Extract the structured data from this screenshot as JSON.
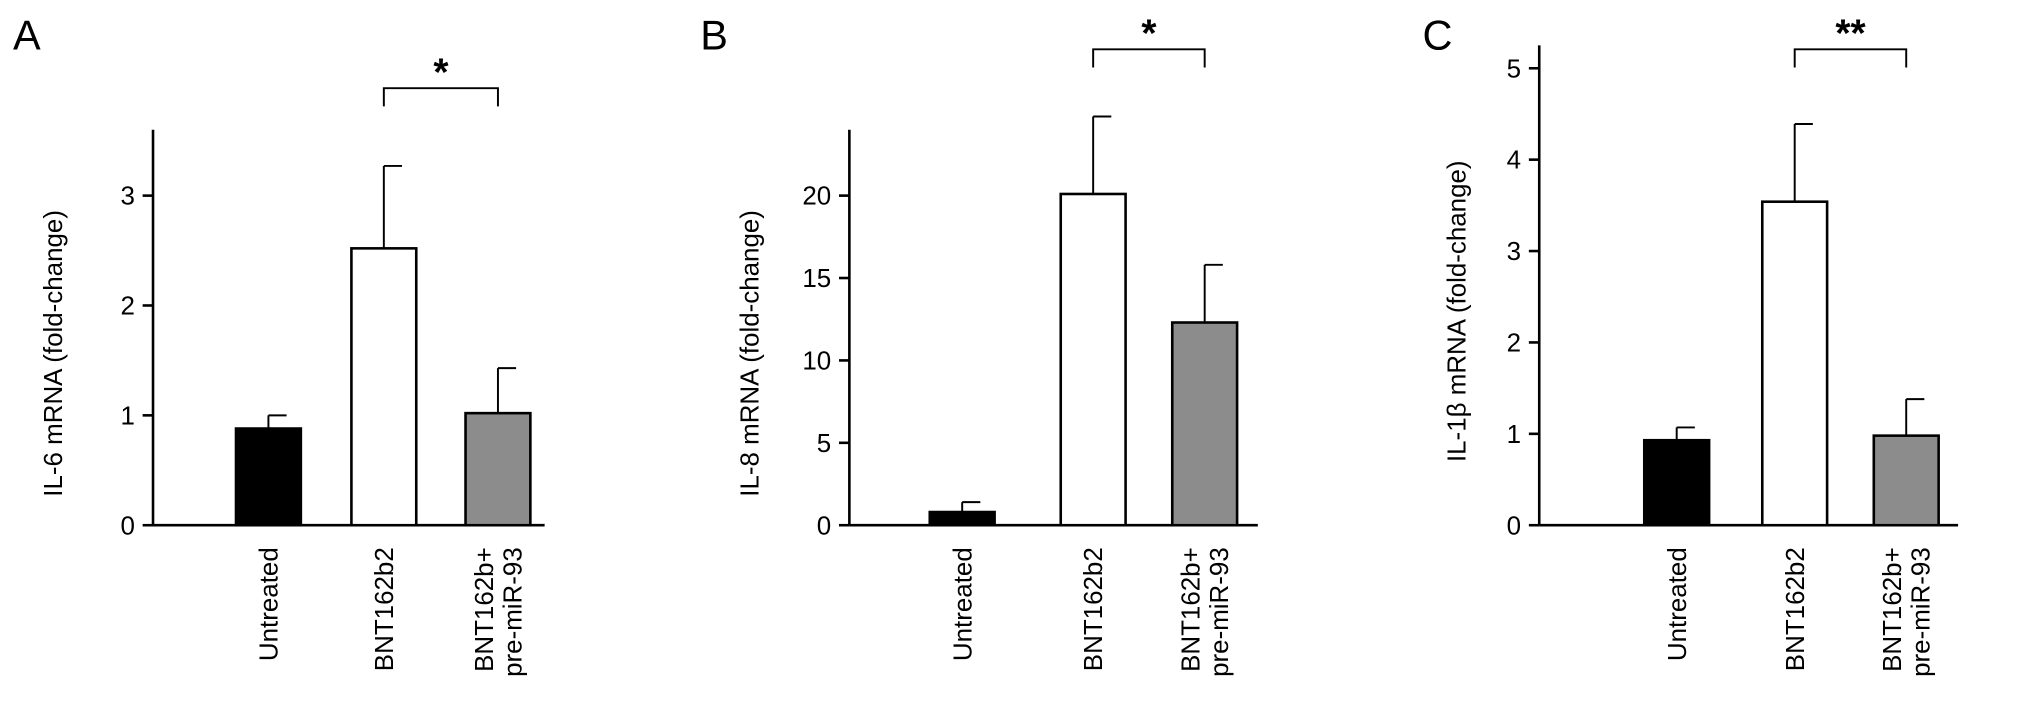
{
  "chart_data": [
    {
      "type": "bar",
      "panel": "A",
      "ylabel": "IL-6 mRNA (fold-change)",
      "categories": [
        "Untreated",
        "BNT162b2",
        "BNT162b+\npre-miR-93"
      ],
      "values": [
        0.88,
        2.52,
        1.02
      ],
      "errors": [
        0.12,
        0.75,
        0.41
      ],
      "colors": [
        "#000000",
        "#ffffff",
        "#8c8c8c"
      ],
      "ylim": [
        0,
        3.6
      ],
      "yticks": [
        0,
        1,
        2,
        3
      ],
      "significance": {
        "from": 1,
        "to": 2,
        "label": "*"
      }
    },
    {
      "type": "bar",
      "panel": "B",
      "ylabel": "IL-8 mRNA (fold-change)",
      "categories": [
        "Untreated",
        "BNT162b2",
        "BNT162b+\npre-miR-93"
      ],
      "values": [
        0.8,
        20.1,
        12.3
      ],
      "errors": [
        0.6,
        4.7,
        3.5
      ],
      "colors": [
        "#000000",
        "#ffffff",
        "#8c8c8c"
      ],
      "ylim": [
        0,
        24
      ],
      "yticks": [
        0,
        5,
        10,
        15,
        20
      ],
      "significance": {
        "from": 1,
        "to": 2,
        "label": "*"
      }
    },
    {
      "type": "bar",
      "panel": "C",
      "ylabel": "IL-1β mRNA (fold-change)",
      "categories": [
        "Untreated",
        "BNT162b2",
        "BNT162b+\npre-miR-93"
      ],
      "values": [
        0.93,
        3.54,
        0.98
      ],
      "errors": [
        0.14,
        0.85,
        0.4
      ],
      "colors": [
        "#000000",
        "#ffffff",
        "#8c8c8c"
      ],
      "ylim": [
        0,
        5.25
      ],
      "yticks": [
        0,
        1,
        2,
        3,
        4,
        5
      ],
      "significance": {
        "from": 1,
        "to": 2,
        "label": "**"
      }
    }
  ]
}
